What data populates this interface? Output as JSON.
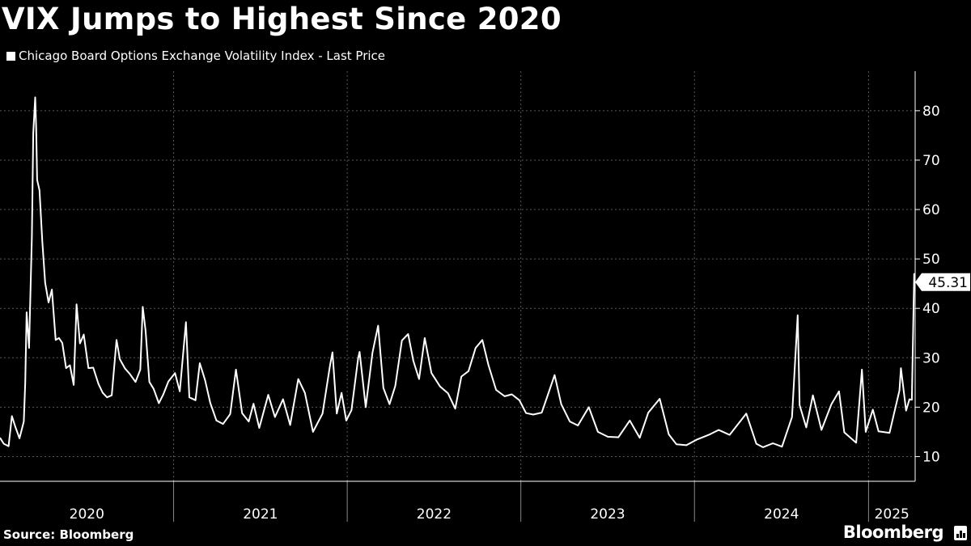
{
  "header": {
    "title": "VIX Jumps to Highest Since 2020",
    "legend_label": "Chicago Board Options Exchange Volatility Index - Last Price"
  },
  "footer": {
    "source": "Source: Bloomberg",
    "brand": "Bloomberg",
    "brand_icon": "bloomberg-bar-icon"
  },
  "colors": {
    "background": "#000000",
    "line": "#ffffff",
    "grid": "#5a5a5a",
    "axis": "#ffffff"
  },
  "chart_data": {
    "type": "line",
    "title": "VIX Jumps to Highest Since 2020",
    "xlabel": "",
    "ylabel": "",
    "ylim": [
      5,
      88
    ],
    "xlim": [
      "2020-01-02",
      "2025-04-09"
    ],
    "y_ticks": [
      10,
      20,
      30,
      40,
      50,
      60,
      70,
      80
    ],
    "x_ticks": [
      "2020",
      "2021",
      "2022",
      "2023",
      "2024",
      "2025"
    ],
    "grid": true,
    "y_axis_side": "right",
    "last_value_label": "45.31",
    "series": [
      {
        "name": "Chicago Board Options Exchange Volatility Index - Last Price",
        "points": [
          [
            "2020-01-02",
            13.8
          ],
          [
            "2020-01-10",
            12.6
          ],
          [
            "2020-01-20",
            12.1
          ],
          [
            "2020-01-27",
            18.2
          ],
          [
            "2020-02-03",
            16.1
          ],
          [
            "2020-02-12",
            13.7
          ],
          [
            "2020-02-21",
            17.1
          ],
          [
            "2020-02-24",
            25.0
          ],
          [
            "2020-02-27",
            39.2
          ],
          [
            "2020-03-03",
            32.0
          ],
          [
            "2020-03-09",
            54.5
          ],
          [
            "2020-03-12",
            75.5
          ],
          [
            "2020-03-16",
            82.7
          ],
          [
            "2020-03-18",
            76.5
          ],
          [
            "2020-03-20",
            66.0
          ],
          [
            "2020-03-25",
            63.9
          ],
          [
            "2020-03-31",
            53.5
          ],
          [
            "2020-04-06",
            45.2
          ],
          [
            "2020-04-13",
            41.2
          ],
          [
            "2020-04-20",
            43.8
          ],
          [
            "2020-04-28",
            33.6
          ],
          [
            "2020-05-05",
            34.0
          ],
          [
            "2020-05-12",
            33.0
          ],
          [
            "2020-05-20",
            27.9
          ],
          [
            "2020-05-28",
            28.5
          ],
          [
            "2020-06-05",
            24.5
          ],
          [
            "2020-06-11",
            40.8
          ],
          [
            "2020-06-18",
            32.9
          ],
          [
            "2020-06-26",
            34.7
          ],
          [
            "2020-07-06",
            27.9
          ],
          [
            "2020-07-16",
            28.0
          ],
          [
            "2020-07-27",
            24.7
          ],
          [
            "2020-08-05",
            22.9
          ],
          [
            "2020-08-14",
            22.0
          ],
          [
            "2020-08-24",
            22.4
          ],
          [
            "2020-09-03",
            33.6
          ],
          [
            "2020-09-10",
            29.7
          ],
          [
            "2020-09-21",
            27.8
          ],
          [
            "2020-10-01",
            26.7
          ],
          [
            "2020-10-13",
            25.1
          ],
          [
            "2020-10-23",
            27.6
          ],
          [
            "2020-10-28",
            40.3
          ],
          [
            "2020-11-03",
            35.5
          ],
          [
            "2020-11-11",
            25.1
          ],
          [
            "2020-11-20",
            23.7
          ],
          [
            "2020-12-01",
            20.8
          ],
          [
            "2020-12-10",
            22.5
          ],
          [
            "2020-12-21",
            25.2
          ],
          [
            "2021-01-04",
            26.9
          ],
          [
            "2021-01-14",
            23.2
          ],
          [
            "2021-01-27",
            37.2
          ],
          [
            "2021-02-03",
            22.0
          ],
          [
            "2021-02-16",
            21.4
          ],
          [
            "2021-02-25",
            28.9
          ],
          [
            "2021-03-08",
            25.5
          ],
          [
            "2021-03-19",
            20.9
          ],
          [
            "2021-04-01",
            17.3
          ],
          [
            "2021-04-15",
            16.6
          ],
          [
            "2021-04-30",
            18.6
          ],
          [
            "2021-05-12",
            27.6
          ],
          [
            "2021-05-25",
            18.8
          ],
          [
            "2021-06-08",
            17.1
          ],
          [
            "2021-06-18",
            20.7
          ],
          [
            "2021-06-30",
            15.8
          ],
          [
            "2021-07-19",
            22.5
          ],
          [
            "2021-08-02",
            18.0
          ],
          [
            "2021-08-19",
            21.6
          ],
          [
            "2021-09-03",
            16.4
          ],
          [
            "2021-09-20",
            25.7
          ],
          [
            "2021-10-04",
            22.9
          ],
          [
            "2021-10-21",
            15.0
          ],
          [
            "2021-11-10",
            18.7
          ],
          [
            "2021-11-26",
            28.6
          ],
          [
            "2021-12-01",
            31.1
          ],
          [
            "2021-12-10",
            18.7
          ],
          [
            "2021-12-20",
            22.9
          ],
          [
            "2021-12-30",
            17.3
          ],
          [
            "2022-01-10",
            19.4
          ],
          [
            "2022-01-24",
            29.9
          ],
          [
            "2022-01-27",
            31.2
          ],
          [
            "2022-02-09",
            20.0
          ],
          [
            "2022-02-23",
            31.0
          ],
          [
            "2022-03-07",
            36.5
          ],
          [
            "2022-03-18",
            23.9
          ],
          [
            "2022-03-31",
            20.6
          ],
          [
            "2022-04-12",
            24.3
          ],
          [
            "2022-04-26",
            33.5
          ],
          [
            "2022-05-09",
            34.8
          ],
          [
            "2022-05-20",
            29.4
          ],
          [
            "2022-06-01",
            25.7
          ],
          [
            "2022-06-13",
            34.0
          ],
          [
            "2022-06-27",
            26.9
          ],
          [
            "2022-07-15",
            24.2
          ],
          [
            "2022-08-01",
            22.8
          ],
          [
            "2022-08-16",
            19.7
          ],
          [
            "2022-08-29",
            26.2
          ],
          [
            "2022-09-13",
            27.3
          ],
          [
            "2022-09-28",
            32.0
          ],
          [
            "2022-10-12",
            33.6
          ],
          [
            "2022-10-25",
            28.5
          ],
          [
            "2022-11-10",
            23.5
          ],
          [
            "2022-11-28",
            22.2
          ],
          [
            "2022-12-13",
            22.6
          ],
          [
            "2022-12-29",
            21.4
          ],
          [
            "2023-01-12",
            18.8
          ],
          [
            "2023-01-27",
            18.5
          ],
          [
            "2023-02-14",
            18.9
          ],
          [
            "2023-02-24",
            21.7
          ],
          [
            "2023-03-13",
            26.5
          ],
          [
            "2023-03-27",
            20.6
          ],
          [
            "2023-04-14",
            17.1
          ],
          [
            "2023-05-01",
            16.3
          ],
          [
            "2023-05-24",
            20.0
          ],
          [
            "2023-06-12",
            15.0
          ],
          [
            "2023-07-03",
            14.0
          ],
          [
            "2023-07-25",
            13.9
          ],
          [
            "2023-08-18",
            17.3
          ],
          [
            "2023-09-08",
            13.8
          ],
          [
            "2023-09-26",
            18.9
          ],
          [
            "2023-10-20",
            21.7
          ],
          [
            "2023-11-08",
            14.5
          ],
          [
            "2023-11-24",
            12.5
          ],
          [
            "2023-12-15",
            12.3
          ],
          [
            "2024-01-05",
            13.4
          ],
          [
            "2024-01-31",
            14.4
          ],
          [
            "2024-02-21",
            15.4
          ],
          [
            "2024-03-15",
            14.4
          ],
          [
            "2024-04-19",
            18.7
          ],
          [
            "2024-05-10",
            12.6
          ],
          [
            "2024-05-24",
            11.9
          ],
          [
            "2024-06-14",
            12.7
          ],
          [
            "2024-07-03",
            12.0
          ],
          [
            "2024-07-24",
            18.0
          ],
          [
            "2024-08-05",
            38.6
          ],
          [
            "2024-08-09",
            20.4
          ],
          [
            "2024-08-23",
            15.9
          ],
          [
            "2024-09-06",
            22.4
          ],
          [
            "2024-09-24",
            15.4
          ],
          [
            "2024-10-15",
            20.6
          ],
          [
            "2024-10-31",
            23.2
          ],
          [
            "2024-11-11",
            14.9
          ],
          [
            "2024-12-06",
            12.8
          ],
          [
            "2024-12-18",
            27.6
          ],
          [
            "2024-12-26",
            15.0
          ],
          [
            "2025-01-10",
            19.5
          ],
          [
            "2025-01-22",
            15.1
          ],
          [
            "2025-02-14",
            14.8
          ],
          [
            "2025-03-07",
            23.4
          ],
          [
            "2025-03-10",
            27.9
          ],
          [
            "2025-03-21",
            19.3
          ],
          [
            "2025-03-28",
            21.6
          ],
          [
            "2025-04-02",
            21.5
          ],
          [
            "2025-04-07",
            46.98
          ],
          [
            "2025-04-08",
            45.31
          ]
        ]
      }
    ]
  }
}
